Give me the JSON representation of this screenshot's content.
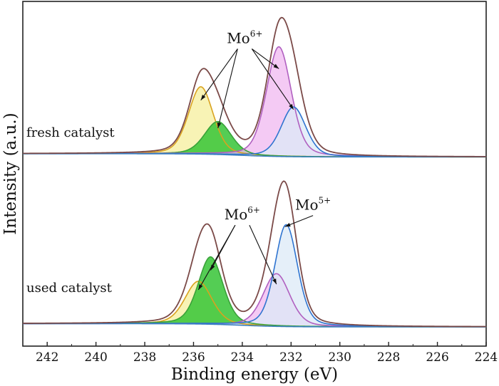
{
  "chart_data": {
    "type": "line",
    "title": "",
    "xlabel": "Binding energy (eV)",
    "ylabel": "Intensity (a.u.)",
    "xlim": [
      243,
      224
    ],
    "x_reversed": true,
    "xticks": [
      242,
      240,
      238,
      236,
      234,
      232,
      230,
      228,
      226,
      224
    ],
    "ylim": [
      0,
      2.15
    ],
    "grid": false,
    "colors": {
      "envelope": "#7b4a48",
      "yellow_line": "#d9a21f",
      "yellow_fill": "#f5ef9c",
      "green_line": "#3aa13a",
      "green_fill": "#36c436",
      "pink_line": "#b060c0",
      "pink_fill": "#f0b8f0",
      "blue_line": "#2f74d0",
      "blue_fill": "#dce9f7",
      "baseline": "#3a7fc0"
    },
    "panels": [
      {
        "label": "fresh catalyst",
        "offset": 1.18,
        "components": [
          {
            "name": "Mo6+ 3d3/2 (yellow)",
            "center": 235.7,
            "height": 0.43,
            "fwhm": 1.2,
            "color": "yellow"
          },
          {
            "name": "Mo6+ 3d3/2 (green)",
            "center": 235.0,
            "height": 0.21,
            "fwhm": 1.3,
            "color": "green"
          },
          {
            "name": "Mo6+ 3d5/2 (pink)",
            "center": 232.5,
            "height": 0.64,
            "fwhm": 1.2,
            "color": "pink"
          },
          {
            "name": "Mo5+ (blue)",
            "center": 231.9,
            "height": 0.29,
            "fwhm": 1.2,
            "color": "blue"
          }
        ],
        "envelope_peaks": [
          {
            "x": 235.6,
            "y": 0.55
          },
          {
            "x": 232.4,
            "y": 0.87
          }
        ],
        "annotations": [
          {
            "text": "Mo",
            "sup": "6+",
            "x": 233.9,
            "y": 0.71
          }
        ]
      },
      {
        "label": "used catalyst",
        "offset": 0.12,
        "components": [
          {
            "name": "Mo6+ 3d3/2 (yellow)",
            "center": 235.8,
            "height": 0.26,
            "fwhm": 1.3,
            "color": "yellow"
          },
          {
            "name": "Mo6+ 3d3/2 (green)",
            "center": 235.3,
            "height": 0.41,
            "fwhm": 1.2,
            "color": "green"
          },
          {
            "name": "Mo6+ 3d5/2 (pink)",
            "center": 232.6,
            "height": 0.3,
            "fwhm": 1.3,
            "color": "pink"
          },
          {
            "name": "Mo5+ (blue)",
            "center": 232.2,
            "height": 0.58,
            "fwhm": 1.1,
            "color": "blue"
          }
        ],
        "envelope_peaks": [
          {
            "x": 235.4,
            "y": 0.64
          },
          {
            "x": 232.3,
            "y": 0.91
          }
        ],
        "annotations": [
          {
            "text": "Mo",
            "sup": "6+",
            "x": 234.0,
            "y": 0.67
          },
          {
            "text": "Mo",
            "sup": "5+",
            "x": 231.1,
            "y": 0.73
          }
        ]
      }
    ]
  }
}
